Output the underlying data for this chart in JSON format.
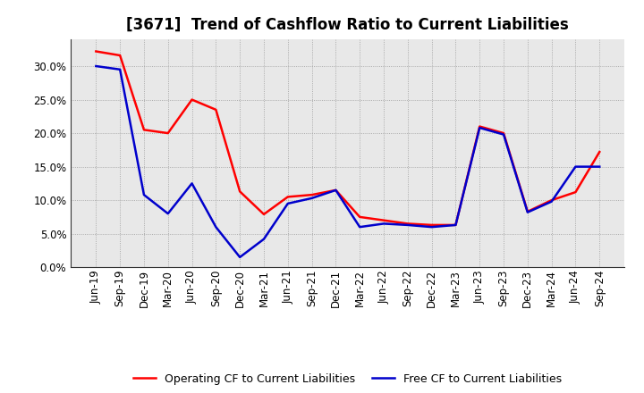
{
  "title": "[3671]  Trend of Cashflow Ratio to Current Liabilities",
  "labels": [
    "Jun-19",
    "Sep-19",
    "Dec-19",
    "Mar-20",
    "Jun-20",
    "Sep-20",
    "Dec-20",
    "Mar-21",
    "Jun-21",
    "Sep-21",
    "Dec-21",
    "Mar-22",
    "Jun-22",
    "Sep-22",
    "Dec-22",
    "Mar-23",
    "Jun-23",
    "Sep-23",
    "Dec-23",
    "Mar-24",
    "Jun-24",
    "Sep-24"
  ],
  "operating_cf": [
    0.322,
    0.316,
    0.205,
    0.2,
    0.25,
    0.235,
    0.113,
    0.079,
    0.105,
    0.108,
    0.115,
    0.075,
    0.07,
    0.065,
    0.063,
    0.063,
    0.21,
    0.2,
    0.083,
    0.1,
    0.112,
    0.172
  ],
  "free_cf": [
    0.3,
    0.295,
    0.108,
    0.08,
    0.125,
    0.06,
    0.015,
    0.042,
    0.095,
    0.103,
    0.115,
    0.06,
    0.065,
    0.063,
    0.06,
    0.063,
    0.208,
    0.198,
    0.082,
    0.098,
    0.15,
    0.15
  ],
  "operating_color": "#FF0000",
  "free_color": "#0000CC",
  "background_color": "#FFFFFF",
  "plot_bg_color": "#E8E8E8",
  "grid_color": "#999999",
  "ylim": [
    0.0,
    0.34
  ],
  "yticks": [
    0.0,
    0.05,
    0.1,
    0.15,
    0.2,
    0.25,
    0.3
  ],
  "legend_operating": "Operating CF to Current Liabilities",
  "legend_free": "Free CF to Current Liabilities",
  "linewidth": 1.8,
  "title_fontsize": 12,
  "tick_fontsize": 8.5
}
